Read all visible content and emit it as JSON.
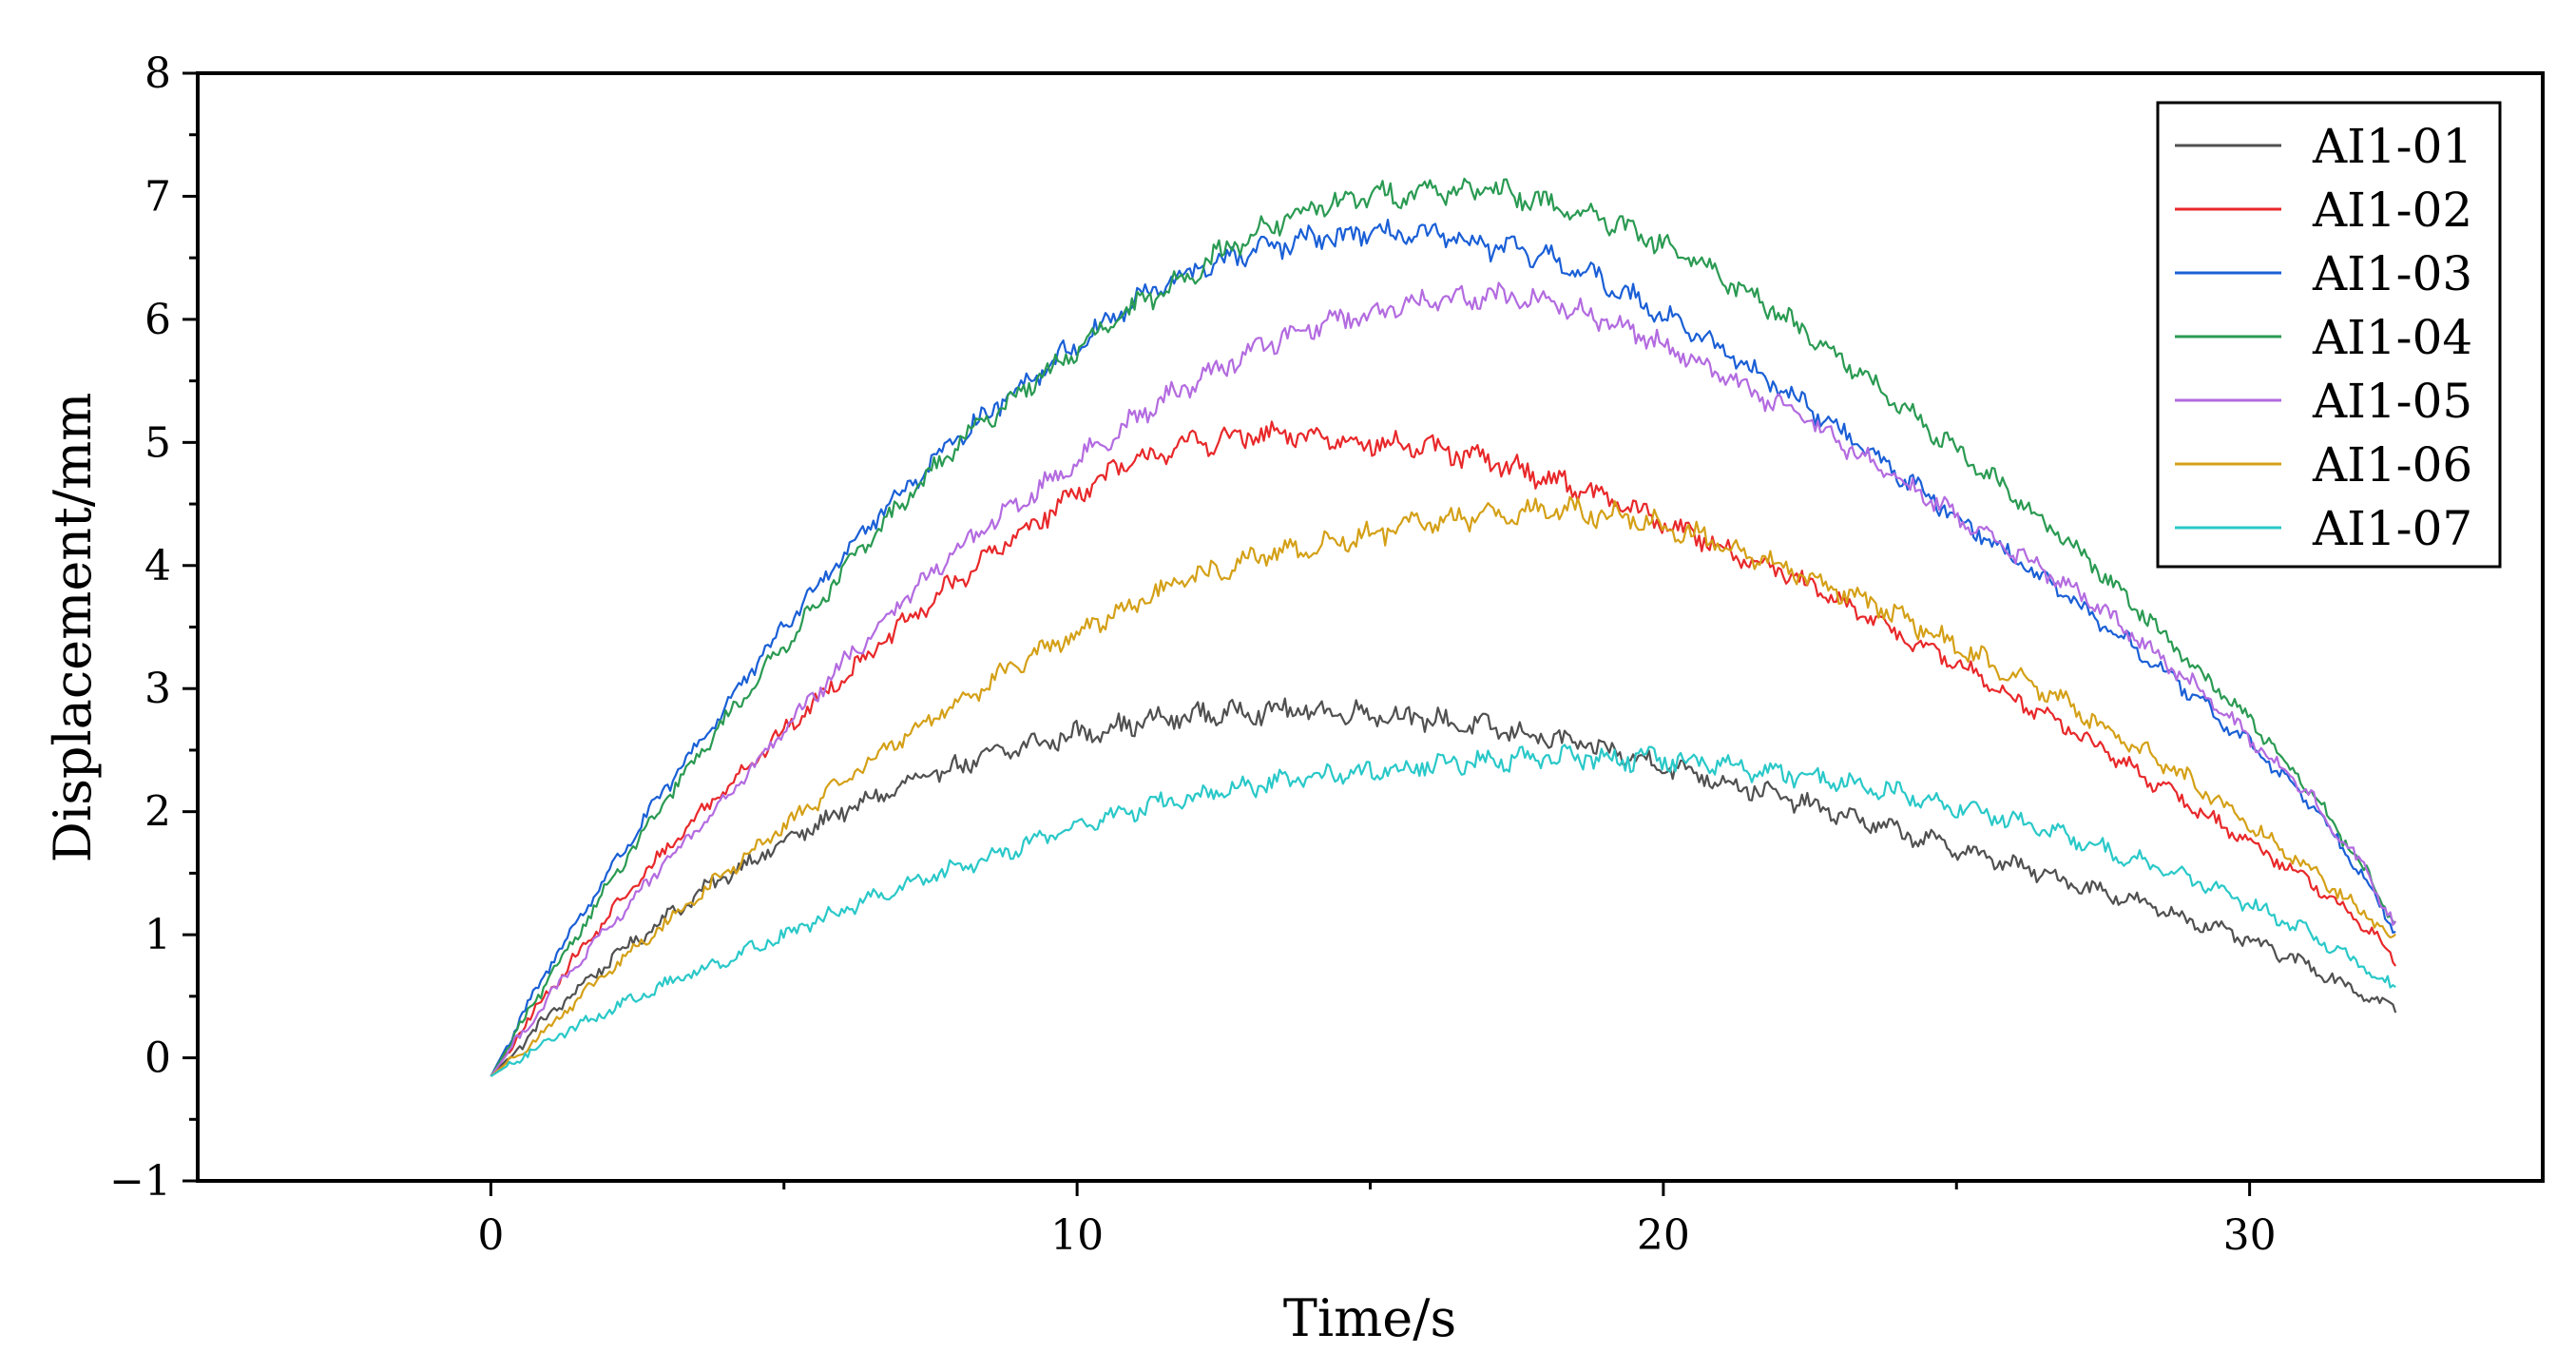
{
  "chart_data": {
    "type": "line",
    "xlabel": "Time/s",
    "ylabel": "Displacement/mm",
    "xlim": [
      -5,
      35
    ],
    "ylim": [
      -1,
      8
    ],
    "xticks": [
      0,
      10,
      20,
      30
    ],
    "yticks": [
      -1,
      0,
      1,
      2,
      3,
      4,
      5,
      6,
      7,
      8
    ],
    "grid": false,
    "legend_position": "top-right",
    "series": [
      {
        "name": "AI1-01",
        "color": "#505050",
        "x": [
          0,
          1,
          2,
          3,
          4,
          5,
          6,
          7,
          8,
          9,
          10,
          11,
          12,
          13,
          14,
          15,
          16,
          17,
          18,
          19,
          20,
          21,
          22,
          23,
          24,
          25,
          26,
          27,
          28,
          29,
          30,
          31,
          32,
          32.5
        ],
        "y": [
          -0.15,
          0.35,
          0.78,
          1.15,
          1.48,
          1.75,
          2.0,
          2.2,
          2.38,
          2.52,
          2.63,
          2.72,
          2.78,
          2.82,
          2.82,
          2.8,
          2.75,
          2.68,
          2.6,
          2.5,
          2.38,
          2.25,
          2.12,
          1.98,
          1.84,
          1.7,
          1.56,
          1.42,
          1.28,
          1.12,
          0.95,
          0.75,
          0.5,
          0.4
        ]
      },
      {
        "name": "AI1-02",
        "color": "#e8282a",
        "x": [
          0,
          1,
          2,
          3,
          4,
          5,
          6,
          7,
          8,
          9,
          10,
          11,
          12,
          13,
          14,
          15,
          16,
          17,
          18,
          19,
          20,
          21,
          22,
          23,
          24,
          25,
          26,
          27,
          28,
          29,
          30,
          31,
          32,
          32.5
        ],
        "y": [
          -0.15,
          0.55,
          1.15,
          1.7,
          2.2,
          2.65,
          3.1,
          3.5,
          3.9,
          4.25,
          4.6,
          4.85,
          5.0,
          5.05,
          5.05,
          5.0,
          4.95,
          4.85,
          4.72,
          4.55,
          4.35,
          4.15,
          3.95,
          3.7,
          3.45,
          3.2,
          2.92,
          2.65,
          2.35,
          2.05,
          1.75,
          1.45,
          1.05,
          0.8
        ]
      },
      {
        "name": "AI1-03",
        "color": "#1a5fd6",
        "x": [
          0,
          1,
          2,
          3,
          4,
          5,
          6,
          7,
          8,
          9,
          10,
          11,
          12,
          13,
          14,
          15,
          16,
          17,
          18,
          19,
          20,
          21,
          22,
          23,
          24,
          25,
          26,
          27,
          28,
          29,
          30,
          31,
          32,
          32.5
        ],
        "y": [
          -0.15,
          0.75,
          1.5,
          2.2,
          2.85,
          3.5,
          4.1,
          4.6,
          5.05,
          5.45,
          5.8,
          6.15,
          6.4,
          6.55,
          6.65,
          6.7,
          6.68,
          6.6,
          6.5,
          6.3,
          6.05,
          5.75,
          5.45,
          5.1,
          4.75,
          4.4,
          4.05,
          3.7,
          3.35,
          2.95,
          2.55,
          2.1,
          1.45,
          1.0
        ]
      },
      {
        "name": "AI1-04",
        "color": "#2a9a52",
        "x": [
          0,
          1,
          2,
          3,
          4,
          5,
          6,
          7,
          8,
          9,
          10,
          11,
          12,
          13,
          14,
          15,
          16,
          17,
          18,
          19,
          20,
          21,
          22,
          23,
          24,
          25,
          26,
          27,
          28,
          29,
          30,
          31,
          32,
          32.5
        ],
        "y": [
          -0.15,
          0.65,
          1.4,
          2.1,
          2.75,
          3.35,
          3.95,
          4.5,
          5.0,
          5.4,
          5.75,
          6.1,
          6.4,
          6.7,
          6.9,
          7.0,
          7.05,
          7.05,
          6.95,
          6.8,
          6.6,
          6.35,
          6.05,
          5.7,
          5.3,
          4.95,
          4.55,
          4.15,
          3.7,
          3.2,
          2.75,
          2.2,
          1.5,
          1.05
        ]
      },
      {
        "name": "AI1-05",
        "color": "#b36be0",
        "x": [
          0,
          1,
          2,
          3,
          4,
          5,
          6,
          7,
          8,
          9,
          10,
          11,
          12,
          13,
          14,
          15,
          16,
          17,
          18,
          19,
          20,
          21,
          22,
          23,
          24,
          25,
          26,
          27,
          28,
          29,
          30,
          31,
          32,
          32.5
        ],
        "y": [
          -0.15,
          0.5,
          1.05,
          1.6,
          2.1,
          2.65,
          3.2,
          3.7,
          4.15,
          4.5,
          4.85,
          5.2,
          5.5,
          5.75,
          5.95,
          6.05,
          6.15,
          6.2,
          6.15,
          6.0,
          5.8,
          5.55,
          5.3,
          5.0,
          4.7,
          4.4,
          4.1,
          3.8,
          3.45,
          3.05,
          2.6,
          2.15,
          1.5,
          1.05
        ]
      },
      {
        "name": "AI1-06",
        "color": "#d4a017",
        "x": [
          0,
          1,
          2,
          3,
          4,
          5,
          6,
          7,
          8,
          9,
          10,
          11,
          12,
          13,
          14,
          15,
          16,
          17,
          18,
          19,
          20,
          21,
          22,
          23,
          24,
          25,
          26,
          27,
          28,
          29,
          30,
          31,
          32,
          32.5
        ],
        "y": [
          -0.15,
          0.25,
          0.7,
          1.1,
          1.5,
          1.88,
          2.25,
          2.6,
          2.9,
          3.2,
          3.45,
          3.7,
          3.9,
          4.05,
          4.15,
          4.25,
          4.35,
          4.42,
          4.45,
          4.42,
          4.32,
          4.18,
          4.0,
          3.8,
          3.58,
          3.35,
          3.1,
          2.85,
          2.55,
          2.25,
          1.9,
          1.55,
          1.15,
          0.95
        ]
      },
      {
        "name": "AI1-07",
        "color": "#2ac8c8",
        "x": [
          0,
          1,
          2,
          3,
          4,
          5,
          6,
          7,
          8,
          9,
          10,
          11,
          12,
          13,
          14,
          15,
          16,
          17,
          18,
          19,
          20,
          21,
          22,
          23,
          24,
          25,
          26,
          27,
          28,
          29,
          30,
          31,
          32,
          32.5
        ],
        "y": [
          -0.15,
          0.15,
          0.38,
          0.6,
          0.8,
          1.0,
          1.2,
          1.38,
          1.55,
          1.72,
          1.88,
          2.02,
          2.12,
          2.2,
          2.28,
          2.33,
          2.38,
          2.42,
          2.44,
          2.44,
          2.42,
          2.38,
          2.32,
          2.25,
          2.15,
          2.05,
          1.92,
          1.78,
          1.62,
          1.45,
          1.25,
          1.02,
          0.72,
          0.55
        ]
      }
    ]
  }
}
